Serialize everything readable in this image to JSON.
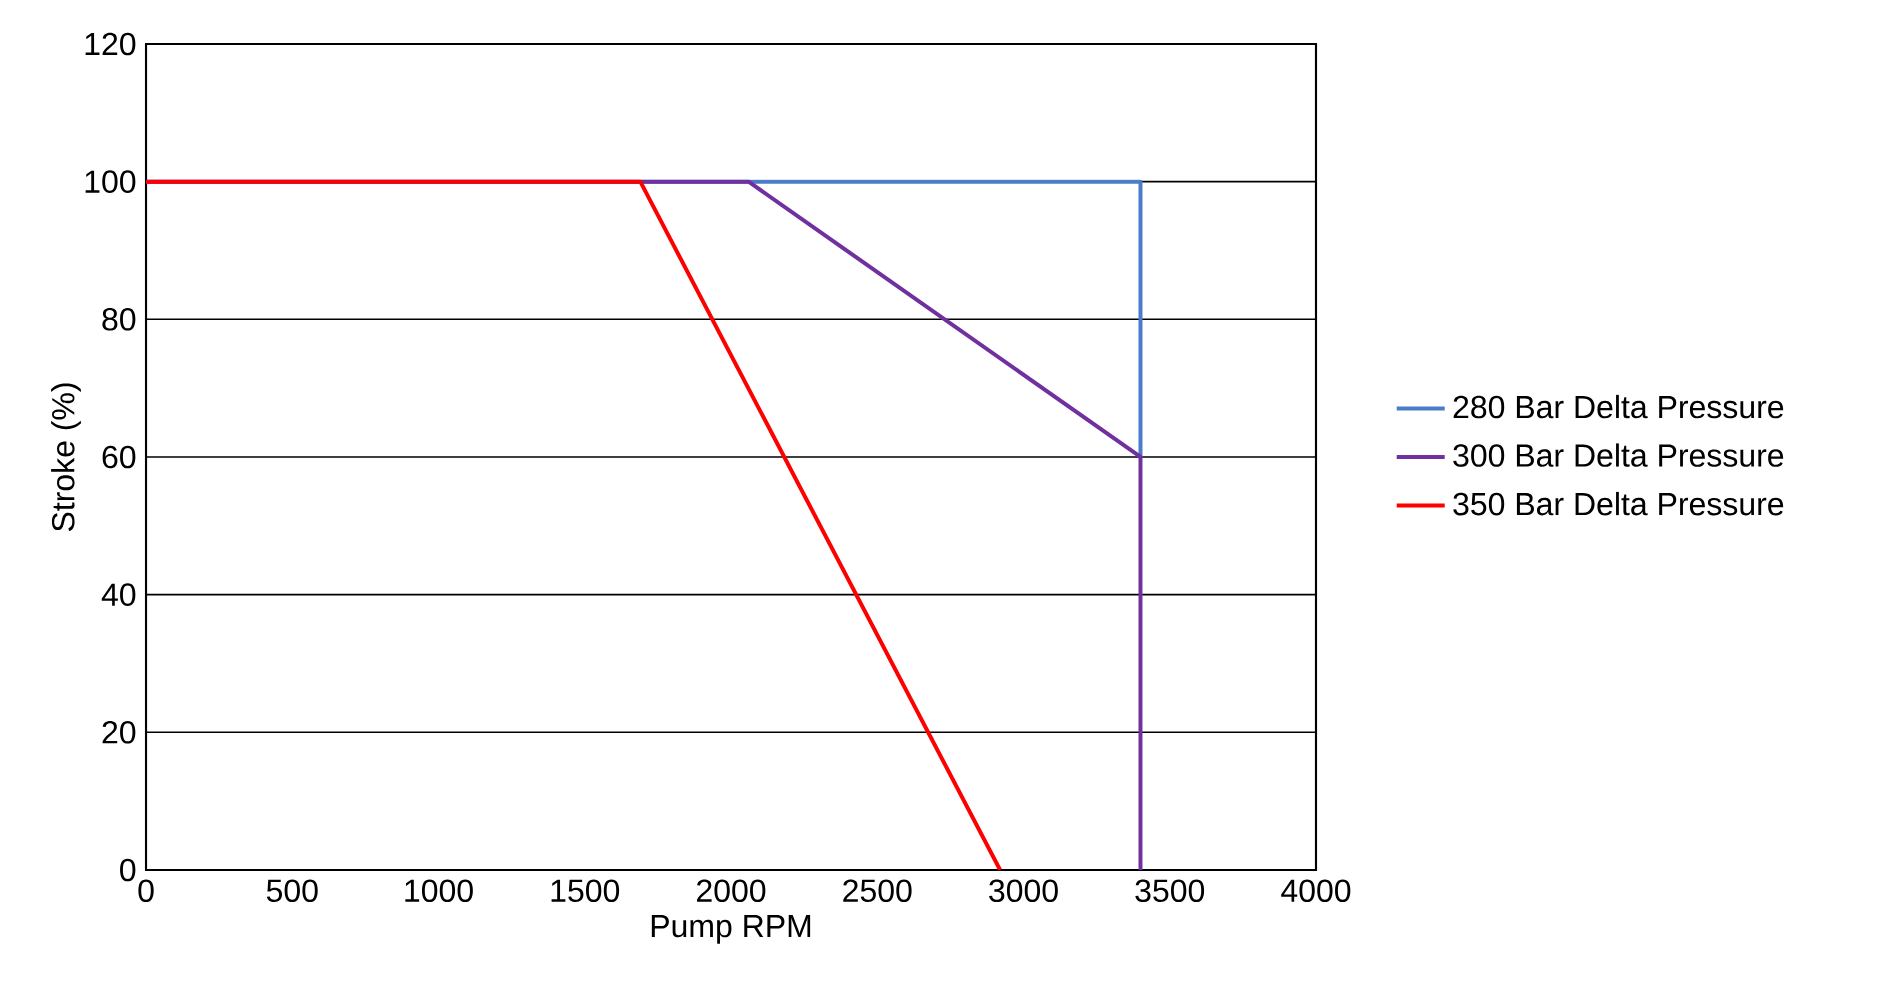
{
  "chart_data": {
    "type": "line",
    "xlabel": "Pump RPM",
    "ylabel": "Stroke (%)",
    "xlim": [
      0,
      4000
    ],
    "ylim": [
      0,
      120
    ],
    "xticks": [
      0,
      500,
      1000,
      1500,
      2000,
      2500,
      3000,
      3500,
      4000
    ],
    "yticks": [
      0,
      20,
      40,
      60,
      80,
      100,
      120
    ],
    "grid": "y",
    "legend": "right",
    "marker": "none",
    "line_style": "solid",
    "series": [
      {
        "name": "280 Bar Delta Pressure",
        "color": "#4a7cc7",
        "x": [
          0,
          3400,
          3400
        ],
        "values": [
          100,
          100,
          60
        ]
      },
      {
        "name": "300 Bar Delta Pressure",
        "color": "#7030a0",
        "x": [
          0,
          2060,
          3400,
          3400
        ],
        "values": [
          100,
          100,
          60,
          0
        ]
      },
      {
        "name": "350 Bar Delta Pressure",
        "color": "#ff0000",
        "x": [
          0,
          1690,
          2920
        ],
        "values": [
          100,
          100,
          0
        ]
      }
    ]
  }
}
